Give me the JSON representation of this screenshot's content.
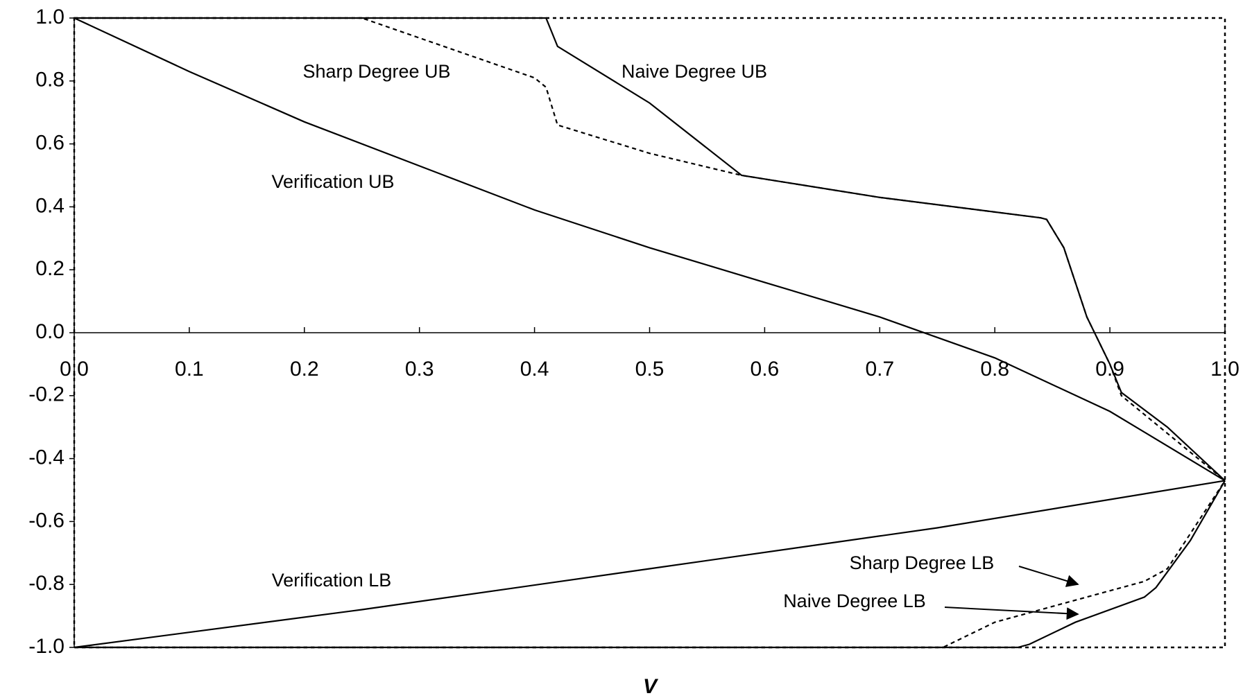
{
  "chart_data": {
    "type": "line",
    "xlabel": "V",
    "xlim": [
      0,
      1
    ],
    "ylim": [
      -1,
      1
    ],
    "xticks": [
      {
        "value": 0,
        "label": "0.0"
      },
      0.1,
      0.2,
      0.3,
      0.4,
      0.5,
      0.6,
      0.7,
      0.8,
      0.9,
      {
        "value": 1,
        "label": "1.0"
      }
    ],
    "yticks": [
      {
        "value": -1,
        "label": "-1.0"
      },
      -0.8,
      -0.6,
      -0.4,
      -0.2,
      {
        "value": 0,
        "label": "0.0"
      },
      0.2,
      0.4,
      0.6,
      0.8,
      {
        "value": 1,
        "label": "1.0"
      }
    ],
    "grid": false,
    "series": [
      {
        "name": "Naive Degree UB",
        "color": "#000000",
        "style": "solid",
        "x": [
          0,
          0.41,
          0.42,
          0.5,
          0.58,
          0.7,
          0.84,
          0.845,
          0.86,
          0.88,
          0.9,
          0.91,
          0.95,
          1.0
        ],
        "values": [
          1.0,
          1.0,
          0.91,
          0.73,
          0.5,
          0.43,
          0.365,
          0.36,
          0.27,
          0.05,
          -0.1,
          -0.19,
          -0.3,
          -0.47
        ]
      },
      {
        "name": "Sharp Degree UB",
        "color": "#000000",
        "style": "dashed",
        "x": [
          0,
          0.25,
          0.4,
          0.41,
          0.42,
          0.5,
          0.58,
          0.7,
          0.84,
          0.845,
          0.86,
          0.88,
          0.9,
          0.91,
          1.0
        ],
        "values": [
          1.0,
          1.0,
          0.81,
          0.78,
          0.66,
          0.57,
          0.5,
          0.43,
          0.365,
          0.36,
          0.27,
          0.05,
          -0.1,
          -0.2,
          -0.47
        ]
      },
      {
        "name": "Verification UB",
        "color": "#000000",
        "style": "solid",
        "x": [
          0,
          0.1,
          0.2,
          0.3,
          0.4,
          0.5,
          0.6,
          0.7,
          0.8,
          0.9,
          1.0
        ],
        "values": [
          1.0,
          0.83,
          0.67,
          0.53,
          0.39,
          0.27,
          0.16,
          0.05,
          -0.08,
          -0.25,
          -0.47
        ]
      },
      {
        "name": "Verification LB",
        "color": "#000000",
        "style": "solid",
        "x": [
          0,
          0.25,
          0.5,
          0.75,
          1.0
        ],
        "values": [
          -1.0,
          -0.88,
          -0.75,
          -0.62,
          -0.47
        ]
      },
      {
        "name": "Sharp Degree LB",
        "color": "#000000",
        "style": "dashed",
        "x": [
          0,
          0.755,
          0.8,
          0.86,
          0.93,
          0.95,
          1.0
        ],
        "values": [
          -1.0,
          -1.0,
          -0.92,
          -0.86,
          -0.79,
          -0.75,
          -0.47
        ]
      },
      {
        "name": "Naive Degree LB",
        "color": "#000000",
        "style": "solid",
        "x": [
          0,
          0.82,
          0.83,
          0.87,
          0.93,
          0.94,
          0.97,
          1.0
        ],
        "values": [
          -1.0,
          -1.0,
          -0.99,
          -0.92,
          -0.84,
          -0.81,
          -0.66,
          -0.47
        ]
      }
    ]
  }
}
